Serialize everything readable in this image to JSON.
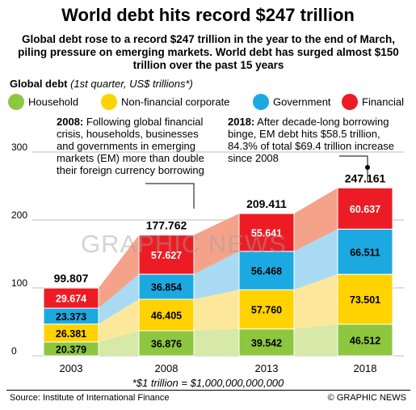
{
  "title": "World debt hits record $247 trillion",
  "subtitle": "Global debt rose to a record $247 trillion in the year to the end of March, piling pressure on emerging markets. World debt has surged almost $150 trillion over the past 15 years",
  "chart_label": "Global debt",
  "chart_note": "(1st quarter, US$ trillions*)",
  "colors": {
    "Household": "#8dc63f",
    "Non-financial corporate": "#ffd200",
    "Government": "#1ca9e1",
    "Financial": "#ed1c24",
    "area_Household": "#d6e9a8",
    "area_Non-financial corporate": "#fde79b",
    "area_Government": "#a9daf3",
    "area_Financial": "#f4a38a"
  },
  "legend": [
    "Household",
    "Non-financial corporate",
    "Government",
    "Financial"
  ],
  "annotations": {
    "a2008_year": "2008:",
    "a2008_text": "Following global financial crisis, households, businesses and governments in emerging markets (EM) more than double their foreign currency borrowing",
    "a2018_year": "2018:",
    "a2018_text": "After decade-long borrowing binge, EM debt hits $58.5 trillion, 84.3% of total $69.4 trillion increase since 2008"
  },
  "footnote": "*$1 trillion = $1,000,000,000,000",
  "source": "Source: Institute of International Finance",
  "copyright": "© GRAPHIC NEWS",
  "watermark": "GRAPHIC NEWS",
  "chart_data": {
    "type": "bar",
    "stacked": true,
    "categories": [
      "2003",
      "2008",
      "2013",
      "2018"
    ],
    "series": [
      {
        "name": "Household",
        "values": [
          20.379,
          36.876,
          39.542,
          46.512
        ]
      },
      {
        "name": "Non-financial corporate",
        "values": [
          26.381,
          46.405,
          57.76,
          73.501
        ]
      },
      {
        "name": "Government",
        "values": [
          23.373,
          36.854,
          56.468,
          66.511
        ]
      },
      {
        "name": "Financial",
        "values": [
          29.674,
          57.627,
          55.641,
          60.637
        ]
      }
    ],
    "totals": [
      "99.807",
      "177.762",
      "209.411",
      "247.161"
    ],
    "value_labels": [
      [
        "20.379",
        "36.876",
        "39.542",
        "46.512"
      ],
      [
        "26.381",
        "46.405",
        "57.760",
        "73.501"
      ],
      [
        "23.373",
        "36.854",
        "56.468",
        "66.511"
      ],
      [
        "29.674",
        "57.627",
        "55.641",
        "60.637"
      ]
    ],
    "ylim": [
      0,
      300
    ],
    "yticks": [
      0,
      100,
      200,
      300
    ],
    "ytick_labels": [
      "0",
      "100",
      "200",
      "300"
    ],
    "grid": true
  }
}
